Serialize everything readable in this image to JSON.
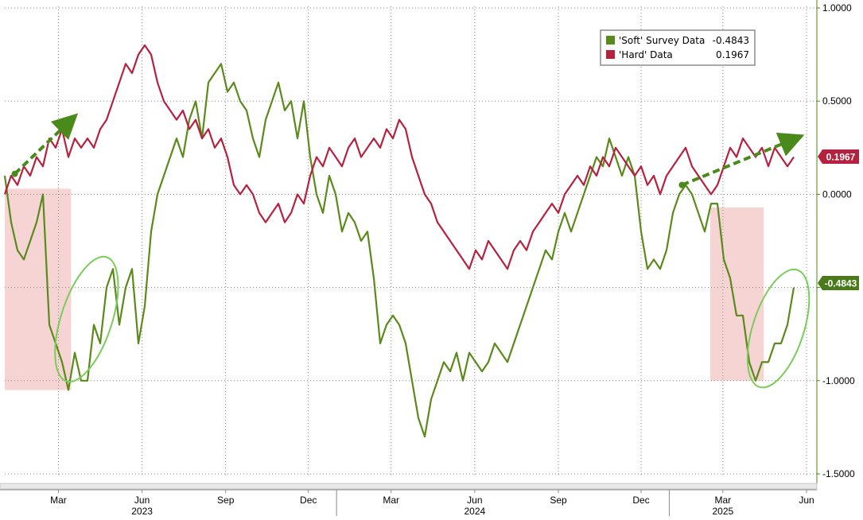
{
  "chart_data": {
    "type": "line",
    "title": "",
    "xlabel": "",
    "ylabel": "",
    "ylim": [
      -1.5,
      1.0
    ],
    "y_ticks": [
      "1.0000",
      "0.5000",
      "0.0000",
      "-0.4843",
      "-1.0000",
      "-1.5000"
    ],
    "y_tick_values": [
      1.0,
      0.5,
      0.0,
      -0.5,
      -1.0,
      -1.5
    ],
    "x_range": [
      "2023-01-01",
      "2025-06-08"
    ],
    "month_labels": [
      {
        "label": "Mar",
        "date": "2023-03-01"
      },
      {
        "label": "Jun",
        "date": "2023-06-01"
      },
      {
        "label": "Sep",
        "date": "2023-09-01"
      },
      {
        "label": "Dec",
        "date": "2023-12-01"
      },
      {
        "label": "Mar",
        "date": "2024-03-01"
      },
      {
        "label": "Jun",
        "date": "2024-06-01"
      },
      {
        "label": "Sep",
        "date": "2024-09-01"
      },
      {
        "label": "Dec",
        "date": "2024-12-01"
      },
      {
        "label": "Mar",
        "date": "2025-03-01"
      },
      {
        "label": "Jun",
        "date": "2025-06-01"
      }
    ],
    "year_labels": [
      {
        "label": "2023",
        "date": "2023-06-01"
      },
      {
        "label": "2024",
        "date": "2024-06-01"
      },
      {
        "label": "2025",
        "date": "2025-03-01"
      }
    ],
    "grid": true,
    "legend_position": "top-right",
    "series": [
      {
        "name": "'Soft' Survey Data",
        "last_value_label": "-0.4843",
        "last_value": -0.5,
        "color": "#5a8a1a",
        "points": [
          [
            "2023-01-01",
            0.1
          ],
          [
            "2023-01-08",
            -0.15
          ],
          [
            "2023-01-15",
            -0.3
          ],
          [
            "2023-01-22",
            -0.35
          ],
          [
            "2023-01-29",
            -0.25
          ],
          [
            "2023-02-05",
            -0.15
          ],
          [
            "2023-02-12",
            0.0
          ],
          [
            "2023-02-19",
            -0.7
          ],
          [
            "2023-02-26",
            -0.8
          ],
          [
            "2023-03-05",
            -0.9
          ],
          [
            "2023-03-12",
            -1.05
          ],
          [
            "2023-03-19",
            -0.85
          ],
          [
            "2023-03-26",
            -1.0
          ],
          [
            "2023-04-02",
            -1.0
          ],
          [
            "2023-04-09",
            -0.7
          ],
          [
            "2023-04-16",
            -0.8
          ],
          [
            "2023-04-23",
            -0.5
          ],
          [
            "2023-04-30",
            -0.4
          ],
          [
            "2023-05-07",
            -0.7
          ],
          [
            "2023-05-14",
            -0.5
          ],
          [
            "2023-05-21",
            -0.4
          ],
          [
            "2023-05-28",
            -0.8
          ],
          [
            "2023-06-04",
            -0.6
          ],
          [
            "2023-06-11",
            -0.2
          ],
          [
            "2023-06-18",
            0.0
          ],
          [
            "2023-06-25",
            0.1
          ],
          [
            "2023-07-02",
            0.2
          ],
          [
            "2023-07-09",
            0.3
          ],
          [
            "2023-07-16",
            0.2
          ],
          [
            "2023-07-23",
            0.4
          ],
          [
            "2023-07-30",
            0.5
          ],
          [
            "2023-08-06",
            0.3
          ],
          [
            "2023-08-13",
            0.6
          ],
          [
            "2023-08-20",
            0.65
          ],
          [
            "2023-08-27",
            0.7
          ],
          [
            "2023-09-03",
            0.55
          ],
          [
            "2023-09-10",
            0.6
          ],
          [
            "2023-09-17",
            0.5
          ],
          [
            "2023-09-24",
            0.45
          ],
          [
            "2023-10-01",
            0.3
          ],
          [
            "2023-10-08",
            0.2
          ],
          [
            "2023-10-15",
            0.4
          ],
          [
            "2023-10-22",
            0.5
          ],
          [
            "2023-10-29",
            0.6
          ],
          [
            "2023-11-05",
            0.45
          ],
          [
            "2023-11-12",
            0.5
          ],
          [
            "2023-11-19",
            0.3
          ],
          [
            "2023-11-26",
            0.5
          ],
          [
            "2023-12-03",
            0.2
          ],
          [
            "2023-12-10",
            0.0
          ],
          [
            "2023-12-17",
            -0.1
          ],
          [
            "2023-12-24",
            0.1
          ],
          [
            "2023-12-31",
            0.0
          ],
          [
            "2024-01-07",
            -0.2
          ],
          [
            "2024-01-14",
            -0.1
          ],
          [
            "2024-01-21",
            -0.15
          ],
          [
            "2024-01-28",
            -0.25
          ],
          [
            "2024-02-04",
            -0.2
          ],
          [
            "2024-02-11",
            -0.45
          ],
          [
            "2024-02-18",
            -0.8
          ],
          [
            "2024-02-25",
            -0.7
          ],
          [
            "2024-03-03",
            -0.65
          ],
          [
            "2024-03-10",
            -0.7
          ],
          [
            "2024-03-17",
            -0.8
          ],
          [
            "2024-03-24",
            -1.0
          ],
          [
            "2024-03-31",
            -1.2
          ],
          [
            "2024-04-07",
            -1.3
          ],
          [
            "2024-04-14",
            -1.1
          ],
          [
            "2024-04-21",
            -1.0
          ],
          [
            "2024-04-28",
            -0.9
          ],
          [
            "2024-05-05",
            -0.95
          ],
          [
            "2024-05-12",
            -0.85
          ],
          [
            "2024-05-19",
            -1.0
          ],
          [
            "2024-05-26",
            -0.85
          ],
          [
            "2024-06-02",
            -0.9
          ],
          [
            "2024-06-09",
            -0.95
          ],
          [
            "2024-06-16",
            -0.9
          ],
          [
            "2024-06-23",
            -0.8
          ],
          [
            "2024-06-30",
            -0.85
          ],
          [
            "2024-07-07",
            -0.9
          ],
          [
            "2024-07-14",
            -0.8
          ],
          [
            "2024-07-21",
            -0.7
          ],
          [
            "2024-07-28",
            -0.6
          ],
          [
            "2024-08-04",
            -0.5
          ],
          [
            "2024-08-11",
            -0.4
          ],
          [
            "2024-08-18",
            -0.3
          ],
          [
            "2024-08-25",
            -0.35
          ],
          [
            "2024-09-01",
            -0.2
          ],
          [
            "2024-09-08",
            -0.1
          ],
          [
            "2024-09-15",
            -0.2
          ],
          [
            "2024-09-22",
            -0.1
          ],
          [
            "2024-09-29",
            0.0
          ],
          [
            "2024-10-06",
            0.1
          ],
          [
            "2024-10-13",
            0.2
          ],
          [
            "2024-10-20",
            0.15
          ],
          [
            "2024-10-27",
            0.3
          ],
          [
            "2024-11-03",
            0.2
          ],
          [
            "2024-11-10",
            0.1
          ],
          [
            "2024-11-17",
            0.2
          ],
          [
            "2024-11-24",
            0.1
          ],
          [
            "2024-12-01",
            -0.2
          ],
          [
            "2024-12-08",
            -0.4
          ],
          [
            "2024-12-15",
            -0.35
          ],
          [
            "2024-12-22",
            -0.4
          ],
          [
            "2024-12-29",
            -0.3
          ],
          [
            "2025-01-05",
            -0.1
          ],
          [
            "2025-01-12",
            0.0
          ],
          [
            "2025-01-19",
            0.05
          ],
          [
            "2025-01-26",
            0.0
          ],
          [
            "2025-02-02",
            -0.1
          ],
          [
            "2025-02-09",
            -0.2
          ],
          [
            "2025-02-16",
            -0.05
          ],
          [
            "2025-02-23",
            -0.05
          ],
          [
            "2025-03-02",
            -0.35
          ],
          [
            "2025-03-09",
            -0.45
          ],
          [
            "2025-03-16",
            -0.65
          ],
          [
            "2025-03-23",
            -0.65
          ],
          [
            "2025-03-30",
            -0.9
          ],
          [
            "2025-04-06",
            -1.0
          ],
          [
            "2025-04-13",
            -0.9
          ],
          [
            "2025-04-20",
            -0.9
          ],
          [
            "2025-04-27",
            -0.8
          ],
          [
            "2025-05-04",
            -0.8
          ],
          [
            "2025-05-11",
            -0.7
          ],
          [
            "2025-05-18",
            -0.5
          ]
        ]
      },
      {
        "name": "'Hard' Data",
        "last_value_label": "0.1967",
        "last_value": 0.2,
        "color": "#b5223f",
        "points": [
          [
            "2023-01-01",
            0.0
          ],
          [
            "2023-01-08",
            0.1
          ],
          [
            "2023-01-15",
            0.05
          ],
          [
            "2023-01-22",
            0.15
          ],
          [
            "2023-01-29",
            0.1
          ],
          [
            "2023-02-05",
            0.2
          ],
          [
            "2023-02-12",
            0.15
          ],
          [
            "2023-02-19",
            0.3
          ],
          [
            "2023-02-26",
            0.25
          ],
          [
            "2023-03-05",
            0.35
          ],
          [
            "2023-03-12",
            0.2
          ],
          [
            "2023-03-19",
            0.3
          ],
          [
            "2023-03-26",
            0.25
          ],
          [
            "2023-04-02",
            0.3
          ],
          [
            "2023-04-09",
            0.25
          ],
          [
            "2023-04-16",
            0.35
          ],
          [
            "2023-04-23",
            0.4
          ],
          [
            "2023-04-30",
            0.5
          ],
          [
            "2023-05-07",
            0.6
          ],
          [
            "2023-05-14",
            0.7
          ],
          [
            "2023-05-21",
            0.65
          ],
          [
            "2023-05-28",
            0.75
          ],
          [
            "2023-06-04",
            0.8
          ],
          [
            "2023-06-11",
            0.75
          ],
          [
            "2023-06-18",
            0.6
          ],
          [
            "2023-06-25",
            0.5
          ],
          [
            "2023-07-02",
            0.45
          ],
          [
            "2023-07-09",
            0.4
          ],
          [
            "2023-07-16",
            0.45
          ],
          [
            "2023-07-23",
            0.35
          ],
          [
            "2023-07-30",
            0.4
          ],
          [
            "2023-08-06",
            0.3
          ],
          [
            "2023-08-13",
            0.35
          ],
          [
            "2023-08-20",
            0.25
          ],
          [
            "2023-08-27",
            0.3
          ],
          [
            "2023-09-03",
            0.2
          ],
          [
            "2023-09-10",
            0.05
          ],
          [
            "2023-09-17",
            0.0
          ],
          [
            "2023-09-24",
            0.05
          ],
          [
            "2023-10-01",
            0.0
          ],
          [
            "2023-10-08",
            -0.1
          ],
          [
            "2023-10-15",
            -0.15
          ],
          [
            "2023-10-22",
            -0.1
          ],
          [
            "2023-10-29",
            -0.05
          ],
          [
            "2023-11-05",
            -0.15
          ],
          [
            "2023-11-12",
            -0.1
          ],
          [
            "2023-11-19",
            0.0
          ],
          [
            "2023-11-26",
            -0.05
          ],
          [
            "2023-12-03",
            0.1
          ],
          [
            "2023-12-10",
            0.2
          ],
          [
            "2023-12-17",
            0.15
          ],
          [
            "2023-12-24",
            0.25
          ],
          [
            "2023-12-31",
            0.2
          ],
          [
            "2024-01-07",
            0.15
          ],
          [
            "2024-01-14",
            0.25
          ],
          [
            "2024-01-21",
            0.3
          ],
          [
            "2024-01-28",
            0.2
          ],
          [
            "2024-02-04",
            0.25
          ],
          [
            "2024-02-11",
            0.3
          ],
          [
            "2024-02-18",
            0.25
          ],
          [
            "2024-02-25",
            0.35
          ],
          [
            "2024-03-03",
            0.3
          ],
          [
            "2024-03-10",
            0.4
          ],
          [
            "2024-03-17",
            0.35
          ],
          [
            "2024-03-24",
            0.2
          ],
          [
            "2024-03-31",
            0.1
          ],
          [
            "2024-04-07",
            0.0
          ],
          [
            "2024-04-14",
            -0.05
          ],
          [
            "2024-04-21",
            -0.15
          ],
          [
            "2024-04-28",
            -0.2
          ],
          [
            "2024-05-05",
            -0.25
          ],
          [
            "2024-05-12",
            -0.3
          ],
          [
            "2024-05-19",
            -0.35
          ],
          [
            "2024-05-26",
            -0.4
          ],
          [
            "2024-06-02",
            -0.3
          ],
          [
            "2024-06-09",
            -0.35
          ],
          [
            "2024-06-16",
            -0.25
          ],
          [
            "2024-06-23",
            -0.3
          ],
          [
            "2024-06-30",
            -0.35
          ],
          [
            "2024-07-07",
            -0.4
          ],
          [
            "2024-07-14",
            -0.3
          ],
          [
            "2024-07-21",
            -0.25
          ],
          [
            "2024-07-28",
            -0.3
          ],
          [
            "2024-08-04",
            -0.2
          ],
          [
            "2024-08-11",
            -0.15
          ],
          [
            "2024-08-18",
            -0.1
          ],
          [
            "2024-08-25",
            -0.05
          ],
          [
            "2024-09-01",
            -0.1
          ],
          [
            "2024-09-08",
            0.0
          ],
          [
            "2024-09-15",
            0.05
          ],
          [
            "2024-09-22",
            0.1
          ],
          [
            "2024-09-29",
            0.05
          ],
          [
            "2024-10-06",
            0.15
          ],
          [
            "2024-10-13",
            0.1
          ],
          [
            "2024-10-20",
            0.2
          ],
          [
            "2024-10-27",
            0.15
          ],
          [
            "2024-11-03",
            0.25
          ],
          [
            "2024-11-10",
            0.2
          ],
          [
            "2024-11-17",
            0.15
          ],
          [
            "2024-11-24",
            0.1
          ],
          [
            "2024-12-01",
            0.15
          ],
          [
            "2024-12-08",
            0.05
          ],
          [
            "2024-12-15",
            0.1
          ],
          [
            "2024-12-22",
            0.0
          ],
          [
            "2024-12-29",
            0.1
          ],
          [
            "2025-01-05",
            0.15
          ],
          [
            "2025-01-12",
            0.2
          ],
          [
            "2025-01-19",
            0.25
          ],
          [
            "2025-01-26",
            0.15
          ],
          [
            "2025-02-02",
            0.1
          ],
          [
            "2025-02-09",
            0.05
          ],
          [
            "2025-02-16",
            0.0
          ],
          [
            "2025-02-23",
            0.05
          ],
          [
            "2025-03-02",
            0.15
          ],
          [
            "2025-03-09",
            0.25
          ],
          [
            "2025-03-16",
            0.2
          ],
          [
            "2025-03-23",
            0.3
          ],
          [
            "2025-03-30",
            0.25
          ],
          [
            "2025-04-06",
            0.2
          ],
          [
            "2025-04-13",
            0.25
          ],
          [
            "2025-04-20",
            0.15
          ],
          [
            "2025-04-27",
            0.25
          ],
          [
            "2025-05-04",
            0.2
          ],
          [
            "2025-05-11",
            0.15
          ],
          [
            "2025-05-18",
            0.2
          ]
        ]
      }
    ],
    "shaded_regions": [
      {
        "start": "2023-01-01",
        "end": "2023-03-15",
        "y_top": 0.03,
        "y_bottom": -1.05
      },
      {
        "start": "2025-02-15",
        "end": "2025-04-15",
        "y_top": -0.07,
        "y_bottom": -1.0
      }
    ],
    "highlight_ellipses": [
      {
        "center": [
          "2023-04-01",
          -0.67
        ],
        "rx_days": 28,
        "ry": 0.35
      },
      {
        "center": [
          "2025-05-01",
          -0.72
        ],
        "rx_days": 28,
        "ry": 0.33
      }
    ],
    "trend_arrows": [
      {
        "from": [
          "2023-01-12",
          0.11
        ],
        "to": [
          "2023-03-15",
          0.4
        ]
      },
      {
        "from": [
          "2025-01-15",
          0.05
        ],
        "to": [
          "2025-05-20",
          0.3
        ]
      }
    ]
  }
}
